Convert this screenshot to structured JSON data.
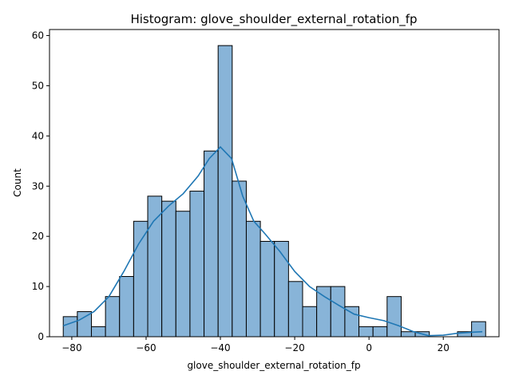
{
  "chart_data": {
    "type": "bar",
    "title": "Histogram: glove_shoulder_external_rotation_fp",
    "xlabel": "glove_shoulder_external_rotation_fp",
    "ylabel": "Count",
    "xlim": [
      -86,
      35
    ],
    "ylim": [
      0,
      61.2
    ],
    "xticks": [
      -80,
      -60,
      -40,
      -20,
      0,
      20
    ],
    "yticks": [
      0,
      10,
      20,
      30,
      40,
      50,
      60
    ],
    "bins": {
      "start": -82.3,
      "width": 3.79
    },
    "values": [
      4,
      5,
      2,
      8,
      12,
      23,
      28,
      27,
      25,
      29,
      37,
      58,
      31,
      23,
      19,
      19,
      11,
      6,
      10,
      10,
      6,
      2,
      2,
      8,
      1,
      1,
      0,
      0,
      1,
      3
    ],
    "kde": {
      "x": [
        -82.3,
        -78,
        -74,
        -70,
        -66,
        -62,
        -58,
        -54,
        -50,
        -46,
        -43,
        -40,
        -37,
        -34,
        -31,
        -28,
        -24,
        -20,
        -16,
        -12,
        -8,
        -4,
        0,
        4,
        8,
        12,
        16,
        20,
        24,
        28,
        30.5
      ],
      "y": [
        2.2,
        3.3,
        5,
        8,
        13,
        18.5,
        23,
        26,
        28.5,
        32,
        35.5,
        37.8,
        35.5,
        28,
        23,
        20.5,
        17,
        13,
        10,
        8,
        6.2,
        4.5,
        3.8,
        3.2,
        2.2,
        1,
        0.2,
        0.3,
        0.7,
        0.9,
        1
      ]
    }
  }
}
